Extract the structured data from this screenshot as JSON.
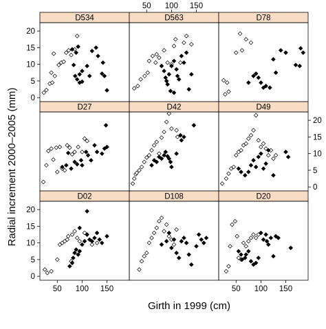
{
  "chart_data": {
    "type": "scatter",
    "layout": "3x3 lattice panels",
    "xlabel": "Girth in 1999 (cm)",
    "ylabel": "Radial increment 2000–2005 (mm)",
    "xlim": [
      15,
      195
    ],
    "ylim": [
      -1.2,
      22.5
    ],
    "xticks": [
      50,
      100,
      150
    ],
    "yticks": [
      0,
      5,
      10,
      15,
      20
    ],
    "grid": false,
    "point_style": {
      "open_marker": "open-diamond",
      "filled_marker": "filled-diamond",
      "color": "#000000"
    },
    "strip_color": "#f9dcc4",
    "panels": [
      {
        "name": "D534",
        "open": [
          [
            23,
            1.5
          ],
          [
            28,
            2.3
          ],
          [
            35,
            4.2
          ],
          [
            40,
            4.5
          ],
          [
            38,
            7.5
          ],
          [
            45,
            6.5
          ],
          [
            43,
            13.2
          ],
          [
            53,
            9.8
          ],
          [
            58,
            10.5
          ],
          [
            63,
            10.8
          ],
          [
            68,
            13.5
          ],
          [
            73,
            14.2
          ],
          [
            78,
            12.8
          ],
          [
            85,
            14.5
          ],
          [
            90,
            18.5
          ]
        ],
        "filled": [
          [
            80,
            14.5
          ],
          [
            88,
            13.5
          ],
          [
            92,
            15.3
          ],
          [
            83,
            9.8
          ],
          [
            86,
            6.5
          ],
          [
            90,
            5.5
          ],
          [
            95,
            4.5
          ],
          [
            100,
            4.8
          ],
          [
            95,
            7.0
          ],
          [
            100,
            8.0
          ],
          [
            110,
            9.5
          ],
          [
            115,
            6.5
          ],
          [
            120,
            14.0
          ],
          [
            128,
            15.0
          ],
          [
            132,
            12.5
          ],
          [
            140,
            7.2
          ],
          [
            145,
            6.5
          ],
          [
            142,
            10.5
          ],
          [
            150,
            2.2
          ]
        ]
      },
      {
        "name": "D563",
        "open": [
          [
            25,
            2.8
          ],
          [
            32,
            3.5
          ],
          [
            38,
            5.5
          ],
          [
            46,
            6.5
          ],
          [
            52,
            7.5
          ],
          [
            55,
            11.0
          ],
          [
            62,
            12.5
          ],
          [
            68,
            10.5
          ],
          [
            70,
            13.0
          ],
          [
            75,
            12.0
          ],
          [
            85,
            14.2
          ],
          [
            92,
            10.5
          ],
          [
            100,
            10.0
          ],
          [
            105,
            15.5
          ],
          [
            108,
            17.5
          ],
          [
            118,
            10.5
          ],
          [
            125,
            16.5
          ],
          [
            130,
            18.5
          ],
          [
            140,
            16.0
          ]
        ],
        "filled": [
          [
            80,
            9.5
          ],
          [
            85,
            8.0
          ],
          [
            88,
            6.0
          ],
          [
            90,
            5.0
          ],
          [
            92,
            4.0
          ],
          [
            95,
            7.0
          ],
          [
            100,
            9.5
          ],
          [
            105,
            11.0
          ],
          [
            110,
            8.5
          ],
          [
            112,
            6.5
          ],
          [
            115,
            5.5
          ],
          [
            120,
            12.5
          ],
          [
            125,
            10.5
          ],
          [
            130,
            13.5
          ],
          [
            98,
            2.0
          ],
          [
            105,
            1.5
          ],
          [
            135,
            2.5
          ],
          [
            140,
            7.0
          ]
        ]
      },
      {
        "name": "D78",
        "open": [
          [
            25,
            5.2
          ],
          [
            32,
            4.5
          ],
          [
            35,
            1.8
          ],
          [
            28,
            1.0
          ],
          [
            50,
            13.5
          ],
          [
            58,
            19.2
          ],
          [
            62,
            14.2
          ],
          [
            70,
            17.5
          ],
          [
            80,
            16.5
          ]
        ],
        "filled": [
          [
            75,
            4.5
          ],
          [
            85,
            6.5
          ],
          [
            90,
            7.2
          ],
          [
            95,
            6.0
          ],
          [
            100,
            4.5
          ],
          [
            105,
            3.0
          ],
          [
            110,
            3.5
          ],
          [
            118,
            3.0
          ],
          [
            125,
            11.5
          ],
          [
            130,
            7.5
          ],
          [
            140,
            14.2
          ],
          [
            150,
            13.5
          ],
          [
            170,
            9.8
          ],
          [
            180,
            14.8
          ],
          [
            185,
            13.5
          ],
          [
            178,
            9.5
          ]
        ]
      },
      {
        "name": "D27",
        "open": [
          [
            22,
            1.5
          ],
          [
            28,
            6.5
          ],
          [
            32,
            10.8
          ],
          [
            38,
            11.5
          ],
          [
            42,
            8.2
          ],
          [
            48,
            11.8
          ],
          [
            50,
            4.5
          ],
          [
            55,
            12.0
          ],
          [
            60,
            5.5
          ],
          [
            65,
            5.0
          ],
          [
            70,
            12.5
          ],
          [
            75,
            11.8
          ],
          [
            80,
            9.8
          ],
          [
            85,
            10.5
          ],
          [
            92,
            12.0
          ],
          [
            100,
            10.5
          ],
          [
            105,
            14.5
          ],
          [
            110,
            13.8
          ]
        ],
        "filled": [
          [
            60,
            6.0
          ],
          [
            68,
            6.5
          ],
          [
            72,
            10.2
          ],
          [
            78,
            5.5
          ],
          [
            85,
            7.5
          ],
          [
            90,
            6.8
          ],
          [
            98,
            8.0
          ],
          [
            100,
            6.5
          ],
          [
            108,
            10.5
          ],
          [
            112,
            9.5
          ],
          [
            118,
            8.0
          ],
          [
            125,
            12.5
          ],
          [
            130,
            10.5
          ],
          [
            140,
            10.0
          ],
          [
            145,
            11.5
          ],
          [
            150,
            12.0
          ],
          [
            148,
            18.5
          ]
        ]
      },
      {
        "name": "D42",
        "open": [
          [
            22,
            1.0
          ],
          [
            25,
            2.5
          ],
          [
            28,
            3.8
          ],
          [
            30,
            4.2
          ],
          [
            35,
            5.0
          ],
          [
            40,
            6.0
          ],
          [
            45,
            7.5
          ],
          [
            50,
            8.8
          ],
          [
            55,
            9.5
          ],
          [
            60,
            11.0
          ],
          [
            65,
            12.5
          ],
          [
            70,
            13.5
          ],
          [
            75,
            10.0
          ],
          [
            80,
            14.8
          ],
          [
            85,
            16.5
          ],
          [
            90,
            19.5
          ],
          [
            95,
            22.0
          ],
          [
            100,
            17.5
          ],
          [
            110,
            17.0
          ],
          [
            112,
            15.0
          ]
        ],
        "filled": [
          [
            60,
            6.5
          ],
          [
            65,
            8.0
          ],
          [
            70,
            7.5
          ],
          [
            75,
            9.0
          ],
          [
            80,
            8.5
          ],
          [
            85,
            9.5
          ],
          [
            88,
            10.5
          ],
          [
            92,
            9.2
          ],
          [
            95,
            8.5
          ],
          [
            98,
            7.5
          ],
          [
            100,
            6.0
          ],
          [
            110,
            10.0
          ],
          [
            118,
            15.5
          ],
          [
            120,
            14.0
          ],
          [
            125,
            15.0
          ],
          [
            145,
            18.5
          ]
        ]
      },
      {
        "name": "D49",
        "open": [
          [
            22,
            1.0
          ],
          [
            30,
            2.5
          ],
          [
            35,
            4.0
          ],
          [
            40,
            5.5
          ],
          [
            45,
            6.0
          ],
          [
            50,
            9.5
          ],
          [
            55,
            10.5
          ],
          [
            60,
            11.0
          ],
          [
            65,
            12.5
          ],
          [
            70,
            13.0
          ],
          [
            75,
            14.5
          ],
          [
            80,
            15.5
          ],
          [
            85,
            17.0
          ],
          [
            90,
            21.5
          ],
          [
            95,
            14.0
          ],
          [
            100,
            12.0
          ],
          [
            105,
            13.0
          ],
          [
            110,
            11.5
          ],
          [
            115,
            9.5
          ],
          [
            120,
            11.0
          ],
          [
            125,
            8.5
          ],
          [
            130,
            9.5
          ]
        ],
        "filled": [
          [
            55,
            5.5
          ],
          [
            60,
            4.5
          ],
          [
            68,
            3.5
          ],
          [
            75,
            4.5
          ],
          [
            80,
            6.5
          ],
          [
            85,
            8.0
          ],
          [
            90,
            6.0
          ],
          [
            95,
            9.0
          ],
          [
            100,
            10.0
          ],
          [
            105,
            5.5
          ],
          [
            110,
            7.0
          ],
          [
            115,
            11.0
          ],
          [
            125,
            3.5
          ],
          [
            150,
            10.5
          ],
          [
            155,
            9.0
          ]
        ]
      },
      {
        "name": "D02",
        "open": [
          [
            25,
            2.0
          ],
          [
            30,
            1.0
          ],
          [
            38,
            1.5
          ],
          [
            50,
            5.0
          ],
          [
            55,
            9.5
          ],
          [
            60,
            10.0
          ],
          [
            65,
            10.5
          ],
          [
            70,
            11.0
          ],
          [
            72,
            12.0
          ],
          [
            80,
            12.5
          ],
          [
            85,
            13.5
          ],
          [
            90,
            11.5
          ],
          [
            95,
            10.5
          ],
          [
            105,
            13.0
          ],
          [
            110,
            12.5
          ],
          [
            120,
            9.5
          ],
          [
            130,
            10.0
          ],
          [
            78,
            4.5
          ]
        ],
        "filled": [
          [
            75,
            3.0
          ],
          [
            80,
            4.0
          ],
          [
            82,
            5.5
          ],
          [
            85,
            7.0
          ],
          [
            88,
            8.0
          ],
          [
            92,
            6.5
          ],
          [
            95,
            7.5
          ],
          [
            100,
            9.5
          ],
          [
            105,
            10.5
          ],
          [
            110,
            12.5
          ],
          [
            115,
            11.0
          ],
          [
            120,
            10.5
          ],
          [
            125,
            11.5
          ],
          [
            130,
            13.0
          ],
          [
            135,
            11.0
          ],
          [
            140,
            10.0
          ],
          [
            150,
            12.0
          ],
          [
            110,
            19.5
          ],
          [
            95,
            14.5
          ]
        ]
      },
      {
        "name": "D108",
        "open": [
          [
            35,
            2.0
          ],
          [
            40,
            4.5
          ],
          [
            45,
            6.0
          ],
          [
            50,
            7.0
          ],
          [
            55,
            10.0
          ],
          [
            60,
            11.5
          ],
          [
            65,
            13.0
          ],
          [
            70,
            14.5
          ],
          [
            75,
            16.5
          ],
          [
            80,
            17.5
          ],
          [
            85,
            13.5
          ],
          [
            90,
            15.5
          ],
          [
            95,
            12.0
          ],
          [
            100,
            11.0
          ],
          [
            105,
            9.5
          ],
          [
            110,
            14.0
          ]
        ],
        "filled": [
          [
            80,
            9.5
          ],
          [
            90,
            10.5
          ],
          [
            95,
            13.0
          ],
          [
            100,
            8.5
          ],
          [
            105,
            11.0
          ],
          [
            110,
            7.0
          ],
          [
            115,
            5.5
          ],
          [
            120,
            10.5
          ],
          [
            125,
            11.5
          ],
          [
            130,
            10.0
          ],
          [
            135,
            6.5
          ],
          [
            140,
            3.5
          ],
          [
            150,
            9.0
          ],
          [
            155,
            12.5
          ],
          [
            160,
            11.0
          ],
          [
            165,
            10.0
          ],
          [
            170,
            11.5
          ]
        ]
      },
      {
        "name": "D20",
        "open": [
          [
            30,
            1.5
          ],
          [
            35,
            3.0
          ],
          [
            38,
            9.0
          ],
          [
            42,
            15.5
          ],
          [
            48,
            16.5
          ],
          [
            52,
            12.0
          ],
          [
            55,
            5.5
          ],
          [
            60,
            5.0
          ],
          [
            65,
            10.0
          ],
          [
            70,
            9.0
          ],
          [
            75,
            10.5
          ],
          [
            80,
            11.5
          ],
          [
            85,
            12.5
          ],
          [
            90,
            11.5
          ],
          [
            95,
            12.5
          ]
        ],
        "filled": [
          [
            55,
            7.5
          ],
          [
            60,
            6.5
          ],
          [
            62,
            5.0
          ],
          [
            68,
            5.5
          ],
          [
            70,
            6.5
          ],
          [
            75,
            7.5
          ],
          [
            80,
            4.5
          ],
          [
            85,
            3.5
          ],
          [
            90,
            4.0
          ],
          [
            95,
            5.5
          ],
          [
            100,
            13.0
          ],
          [
            105,
            11.0
          ],
          [
            110,
            12.5
          ],
          [
            112,
            10.5
          ],
          [
            115,
            9.5
          ],
          [
            120,
            11.5
          ],
          [
            130,
            12.0
          ],
          [
            135,
            11.5
          ],
          [
            160,
            8.5
          ],
          [
            125,
            6.0
          ]
        ]
      }
    ]
  }
}
